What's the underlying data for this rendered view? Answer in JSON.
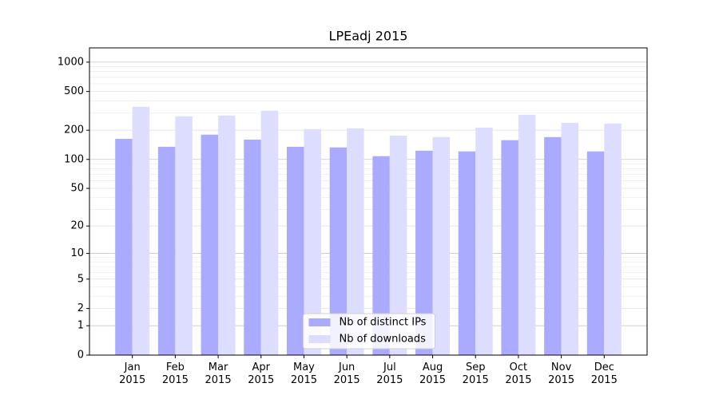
{
  "chart_data": {
    "type": "bar",
    "title": "LPEadj 2015",
    "yscale": "log1p",
    "categories": [
      "Jan 2015",
      "Feb 2015",
      "Mar 2015",
      "Apr 2015",
      "May 2015",
      "Jun 2015",
      "Jul 2015",
      "Aug 2015",
      "Sep 2015",
      "Oct 2015",
      "Nov 2015",
      "Dec 2015"
    ],
    "series": [
      {
        "name": "Nb of distinct IPs",
        "color": "#aaaaff",
        "values": [
          163,
          135,
          180,
          160,
          135,
          133,
          108,
          123,
          121,
          158,
          170,
          121
        ]
      },
      {
        "name": "Nb of downloads",
        "color": "#ddddff",
        "values": [
          348,
          278,
          283,
          317,
          205,
          209,
          176,
          170,
          213,
          288,
          238,
          234
        ]
      }
    ],
    "ylim": [
      0,
      1400
    ],
    "yticks": [
      0,
      1,
      2,
      5,
      10,
      20,
      50,
      100,
      200,
      500,
      1000
    ],
    "grid": true,
    "legend": "lower center"
  }
}
